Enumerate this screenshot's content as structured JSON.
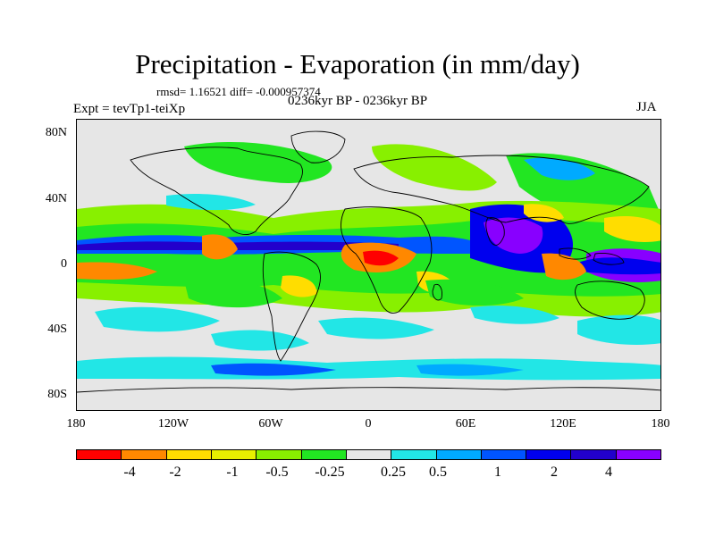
{
  "title": "Precipitation - Evaporation (in mm/day)",
  "stats": "rmsd= 1.16521 diff= -0.000957374",
  "experiment": "Expt = tevTp1-teiXp",
  "period": "0236kyr BP - 0236kyr BP",
  "season": "JJA",
  "axes": {
    "y_ticks": [
      "80N",
      "40N",
      "0",
      "40S",
      "80S"
    ],
    "x_ticks": [
      "180",
      "120W",
      "60W",
      "0",
      "60E",
      "120E",
      "180"
    ]
  },
  "colorbar": {
    "colors": [
      "#ff0000",
      "#ff8800",
      "#ffdd00",
      "#e8f000",
      "#88f000",
      "#22e622",
      "#e6e6e6",
      "#22e6e6",
      "#00aaff",
      "#0055ff",
      "#0000ee",
      "#2200cc",
      "#8800ff"
    ],
    "labels": [
      "-4",
      "-2",
      "-1",
      "-0.5",
      "-0.25",
      "0.25",
      "0.5",
      "1",
      "2",
      "4"
    ]
  }
}
